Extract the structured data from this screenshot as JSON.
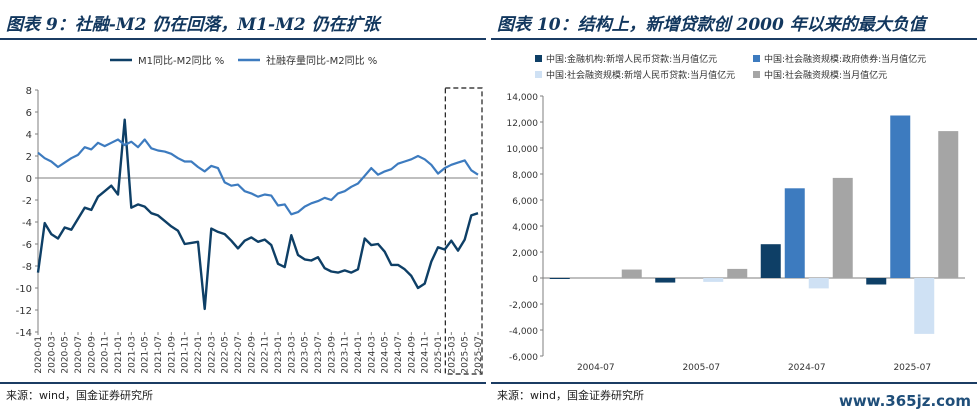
{
  "left": {
    "title": "图表 9：社融-M2 仍在回落，M1-M2 仍在扩张",
    "source": "来源：wind，国金证券研究所"
  },
  "right": {
    "title": "图表 10：结构上，新增贷款创 2000 年以来的最大负值",
    "source": "来源：wind，国金证券研究所"
  },
  "watermark": "www.365jz.com",
  "colors": {
    "dark": "#0e3f66",
    "mid": "#3d7bbf",
    "light": "#cfe1f4",
    "gray": "#a5a5a5",
    "title": "#12375e"
  },
  "chart_data": [
    {
      "type": "line",
      "xlabel": "",
      "ylabel": "",
      "ylim": [
        -14,
        8
      ],
      "yticks": [
        -14,
        -12,
        -10,
        -8,
        -6,
        -4,
        -2,
        0,
        2,
        4,
        6,
        8
      ],
      "x_tick_labels": [
        "2020-01",
        "2020-03",
        "2020-05",
        "2020-07",
        "2020-09",
        "2020-11",
        "2021-01",
        "2021-03",
        "2021-05",
        "2021-07",
        "2021-09",
        "2021-11",
        "2022-01",
        "2022-03",
        "2022-05",
        "2022-07",
        "2022-09",
        "2022-11",
        "2023-01",
        "2023-03",
        "2023-05",
        "2023-07",
        "2023-09",
        "2023-11",
        "2024-01",
        "2024-03",
        "2024-05",
        "2024-07",
        "2024-09",
        "2024-11",
        "2025-01",
        "2025-03",
        "2025-05",
        "2025-07"
      ],
      "legend_position": "top",
      "grid": false,
      "highlight_box_from": "2025-03",
      "series": [
        {
          "name": "M1同比-M2同比 %",
          "color": "#0e3f66",
          "values": [
            -8.6,
            -4.1,
            -5.1,
            -5.5,
            -4.5,
            -4.7,
            -3.7,
            -2.7,
            -2.9,
            -1.7,
            -1.2,
            -0.7,
            -1.5,
            5.3,
            -2.7,
            -2.4,
            -2.6,
            -3.2,
            -3.4,
            -3.9,
            -4.4,
            -4.8,
            -6.0,
            -5.9,
            -5.8,
            -11.9,
            -4.6,
            -4.9,
            -5.1,
            -5.7,
            -6.4,
            -5.7,
            -5.4,
            -5.8,
            -5.6,
            -6.1,
            -7.8,
            -8.1,
            -5.2,
            -7.0,
            -7.4,
            -7.5,
            -7.2,
            -8.2,
            -8.5,
            -8.6,
            -8.4,
            -8.6,
            -8.3,
            -5.5,
            -6.1,
            -6.0,
            -6.7,
            -7.9,
            -7.9,
            -8.3,
            -8.9,
            -10.0,
            -9.6,
            -7.6,
            -6.3,
            -6.5,
            -5.7,
            -6.6,
            -5.6,
            -3.4,
            -3.2
          ]
        },
        {
          "name": "社融存量同比-M2同比 %",
          "color": "#3d7bbf",
          "values": [
            2.3,
            1.8,
            1.5,
            1.0,
            1.4,
            1.8,
            2.1,
            2.8,
            2.6,
            3.2,
            2.9,
            3.2,
            3.5,
            3.0,
            3.3,
            2.8,
            3.5,
            2.7,
            2.5,
            2.4,
            2.2,
            1.8,
            1.5,
            1.5,
            1.0,
            0.6,
            1.1,
            0.9,
            -0.4,
            -0.7,
            -0.6,
            -1.2,
            -1.4,
            -1.7,
            -1.5,
            -1.6,
            -2.5,
            -2.4,
            -3.3,
            -3.1,
            -2.6,
            -2.3,
            -2.1,
            -1.8,
            -2.0,
            -1.4,
            -1.2,
            -0.8,
            -0.5,
            0.2,
            0.9,
            0.3,
            0.6,
            0.8,
            1.3,
            1.5,
            1.7,
            2.0,
            1.7,
            1.2,
            0.4,
            0.9,
            1.2,
            1.4,
            1.6,
            0.7,
            0.3
          ]
        }
      ]
    },
    {
      "type": "bar",
      "xlabel": "",
      "ylabel": "",
      "ylim": [
        -6000,
        14000
      ],
      "yticks": [
        -6000,
        -4000,
        -2000,
        0,
        2000,
        4000,
        6000,
        8000,
        10000,
        12000,
        14000
      ],
      "categories": [
        "2004-07",
        "2005-07",
        "2024-07",
        "2025-07"
      ],
      "legend_position": "top",
      "grid": false,
      "series": [
        {
          "name": "中国:金融机构:新增人民币贷款:当月值亿元",
          "color": "#0e3f66",
          "values": [
            -50,
            -350,
            2600,
            -500
          ]
        },
        {
          "name": "中国:社会融资规模:政府债券:当月值亿元",
          "color": "#3d7bbf",
          "values": [
            0,
            0,
            6900,
            12500
          ]
        },
        {
          "name": "中国:社会融资规模:新增人民币贷款:当月值亿元",
          "color": "#cfe1f4",
          "values": [
            0,
            -300,
            -800,
            -4300
          ]
        },
        {
          "name": "中国:社会融资规模:当月值亿元",
          "color": "#a5a5a5",
          "values": [
            650,
            700,
            7700,
            11300
          ]
        }
      ]
    }
  ]
}
